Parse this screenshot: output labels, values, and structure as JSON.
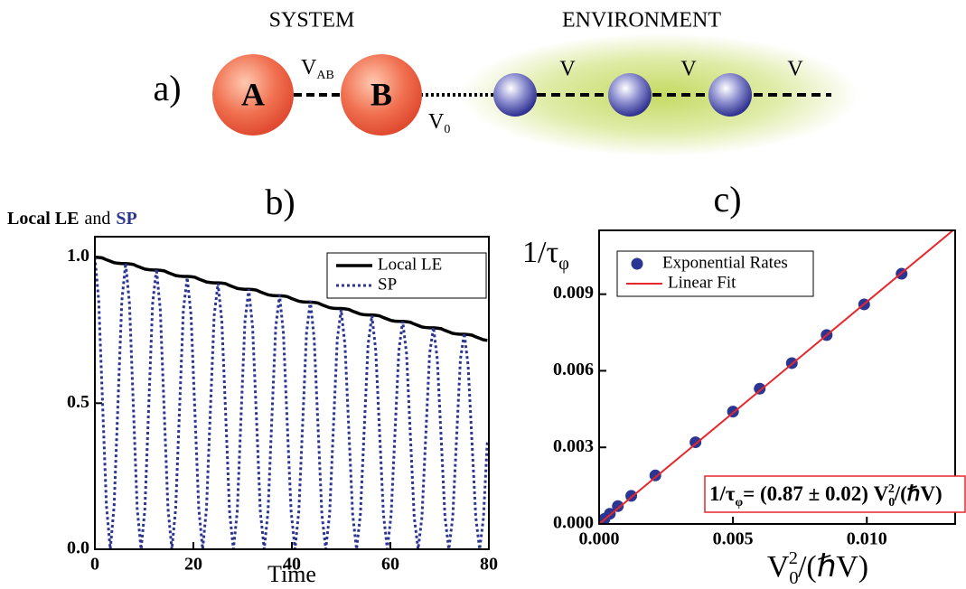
{
  "diagram": {
    "label": "a)",
    "system": "SYSTEM",
    "environment": "ENVIRONMENT",
    "nodes": [
      "A",
      "B"
    ],
    "couplings": [
      {
        "text": "V",
        "sub": "AB"
      },
      {
        "text": "V",
        "sub": "0"
      },
      {
        "text": "V"
      },
      {
        "text": "V"
      },
      {
        "text": "V"
      }
    ]
  },
  "chart_data": [
    {
      "type": "line",
      "panel_label": "b)",
      "ylabel": [
        {
          "text": "Local LE",
          "bold": true
        },
        {
          "text": "and"
        },
        {
          "text": "SP",
          "bold": true,
          "color": "#2b3592"
        }
      ],
      "xlabel": [
        {
          "text": "Time"
        }
      ],
      "xlim": [
        0,
        80
      ],
      "xticks": [
        0,
        20,
        40,
        60,
        80
      ],
      "ylim": [
        0,
        1.07
      ],
      "yticks": [
        {
          "value": 0,
          "label": "0.0"
        },
        {
          "value": 0.5,
          "label": "0.5"
        },
        {
          "value": 1,
          "label": "1.0"
        }
      ],
      "legend": "upper right",
      "x": [
        0,
        0.78,
        1.56,
        2.34,
        3.13,
        3.91,
        4.69,
        5.47,
        6.25,
        7.03,
        7.81,
        8.59,
        9.38,
        10.16,
        10.94,
        11.72,
        12.5,
        13.28,
        14.06,
        14.84,
        15.63,
        16.41,
        17.19,
        17.97,
        18.75,
        19.53,
        20.31,
        21.09,
        21.88,
        22.66,
        23.44,
        24.22,
        25,
        25.78,
        26.56,
        27.34,
        28.13,
        28.91,
        29.69,
        30.47,
        31.25,
        32.03,
        32.81,
        33.59,
        34.38,
        35.16,
        35.94,
        36.72,
        37.5,
        38.28,
        39.06,
        39.84,
        40.63,
        41.41,
        42.19,
        42.97,
        43.75,
        44.53,
        45.31,
        46.09,
        46.88,
        47.66,
        48.44,
        49.22,
        50,
        50.78,
        51.56,
        52.34,
        53.13,
        53.91,
        54.69,
        55.47,
        56.25,
        57.03,
        57.81,
        58.59,
        59.38,
        60.16,
        60.94,
        61.72,
        62.5,
        63.28,
        64.06,
        64.84,
        65.63,
        66.41,
        67.19,
        67.97,
        68.75,
        69.53,
        70.31,
        71.09,
        71.88,
        72.66,
        73.44,
        74.22,
        75,
        75.78,
        76.56,
        77.34,
        78.13,
        78.91,
        79.69
      ],
      "series": [
        {
          "name": "Local LE",
          "color": "#000000",
          "dash": "solid",
          "values": [
            1,
            0.999,
            0.997,
            0.991,
            0.986,
            0.981,
            0.979,
            0.978,
            0.978,
            0.977,
            0.975,
            0.969,
            0.964,
            0.959,
            0.957,
            0.956,
            0.956,
            0.955,
            0.953,
            0.947,
            0.942,
            0.937,
            0.935,
            0.934,
            0.934,
            0.933,
            0.931,
            0.925,
            0.92,
            0.915,
            0.913,
            0.912,
            0.912,
            0.911,
            0.909,
            0.903,
            0.898,
            0.893,
            0.891,
            0.89,
            0.89,
            0.889,
            0.887,
            0.881,
            0.876,
            0.871,
            0.869,
            0.868,
            0.868,
            0.867,
            0.865,
            0.859,
            0.854,
            0.849,
            0.847,
            0.846,
            0.846,
            0.845,
            0.843,
            0.837,
            0.832,
            0.827,
            0.825,
            0.824,
            0.824,
            0.823,
            0.821,
            0.815,
            0.81,
            0.805,
            0.803,
            0.802,
            0.802,
            0.801,
            0.799,
            0.793,
            0.788,
            0.783,
            0.781,
            0.78,
            0.78,
            0.779,
            0.777,
            0.771,
            0.766,
            0.761,
            0.759,
            0.758,
            0.758,
            0.757,
            0.755,
            0.749,
            0.744,
            0.739,
            0.737,
            0.736,
            0.736,
            0.735,
            0.733,
            0.727,
            0.722,
            0.717,
            0.715
          ]
        },
        {
          "name": "SP",
          "color": "#2b3592",
          "dash": "dotted",
          "values": [
            1,
            0.85,
            0.5,
            0.15,
            0,
            0.15,
            0.5,
            0.85,
            0.98,
            0.84,
            0.49,
            0.14,
            0,
            0.14,
            0.49,
            0.84,
            0.96,
            0.82,
            0.48,
            0.14,
            0,
            0.14,
            0.48,
            0.82,
            0.93,
            0.8,
            0.47,
            0.14,
            0,
            0.14,
            0.47,
            0.8,
            0.91,
            0.78,
            0.46,
            0.13,
            0,
            0.13,
            0.46,
            0.78,
            0.89,
            0.76,
            0.45,
            0.13,
            0,
            0.13,
            0.45,
            0.76,
            0.87,
            0.74,
            0.43,
            0.13,
            0,
            0.13,
            0.43,
            0.74,
            0.85,
            0.72,
            0.42,
            0.12,
            0,
            0.12,
            0.42,
            0.72,
            0.82,
            0.7,
            0.41,
            0.12,
            0,
            0.12,
            0.41,
            0.7,
            0.8,
            0.68,
            0.4,
            0.12,
            0,
            0.12,
            0.4,
            0.68,
            0.78,
            0.67,
            0.39,
            0.11,
            0,
            0.11,
            0.39,
            0.67,
            0.76,
            0.65,
            0.38,
            0.11,
            0,
            0.11,
            0.38,
            0.65,
            0.74,
            0.63,
            0.37,
            0.11,
            0,
            0.11,
            0.37
          ]
        }
      ]
    },
    {
      "type": "scatter",
      "panel_label": "c)",
      "ylabel": [
        {
          "text": "1/τ"
        },
        {
          "text": "φ",
          "sub": true
        }
      ],
      "xlabel": [
        {
          "text": "V"
        },
        {
          "text": "0",
          "sub": true
        },
        {
          "text": "2",
          "sup": true
        },
        {
          "text": "/(ℏV)"
        }
      ],
      "xlim": [
        0,
        0.0133
      ],
      "xticks": [
        {
          "value": 0,
          "label": "0.000"
        },
        {
          "value": 0.005,
          "label": "0.005"
        },
        {
          "value": 0.01,
          "label": "0.010"
        }
      ],
      "ylim": [
        0,
        0.0115
      ],
      "yticks": [
        {
          "value": 0,
          "label": "0.000"
        },
        {
          "value": 0.003,
          "label": "0.003"
        },
        {
          "value": 0.006,
          "label": "0.006"
        },
        {
          "value": 0.009,
          "label": "0.009"
        }
      ],
      "legend": "upper left",
      "series": [
        {
          "name": "Exponential Rates",
          "color": "#2b3592",
          "x": [
            0,
            0.0001,
            0.0002,
            0.0004,
            0.0007,
            0.0012,
            0.0021,
            0.0036,
            0.005,
            0.006,
            0.0072,
            0.0085,
            0.0099,
            0.0113
          ],
          "values": [
            0,
            0.0001,
            0.0002,
            0.0004,
            0.0007,
            0.0011,
            0.0019,
            0.0032,
            0.0044,
            0.0053,
            0.0063,
            0.0074,
            0.0086,
            0.0098
          ]
        },
        {
          "name": "Linear Fit",
          "color": "#e8262b",
          "type": "line",
          "x": [
            0,
            0.0133
          ],
          "values": [
            0,
            0.01157
          ]
        }
      ],
      "annotation": [
        {
          "text": "1/τ"
        },
        {
          "text": "φ",
          "sub": true
        },
        {
          "text": "= (0.87 ± 0.02) V"
        },
        {
          "text": "0",
          "sub": true
        },
        {
          "text": "2",
          "sup": true
        },
        {
          "text": "/(ℏV)"
        }
      ],
      "annotation_color": "#e8262b"
    }
  ]
}
